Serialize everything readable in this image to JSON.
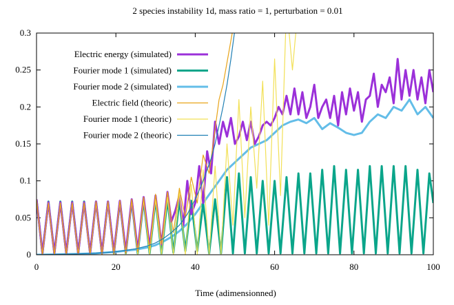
{
  "chart_data": {
    "type": "line",
    "title": "2 species instability 1d, mass ratio = 1, perturbation = 0.01",
    "xlabel": "Time (adimensionned)",
    "ylabel": "",
    "xlim": [
      0,
      100
    ],
    "ylim": [
      0,
      0.3
    ],
    "xticks": [
      "0",
      "20",
      "40",
      "60",
      "80",
      "100"
    ],
    "yticks": [
      "0",
      "0.05",
      "0.1",
      "0.15",
      "0.2",
      "0.25",
      "0.3"
    ],
    "grid": false,
    "legend_position": "top-left",
    "series": [
      {
        "name": "Electric energy (simulated)",
        "color": "#9b30d9",
        "style": "thick",
        "x": [
          0,
          1.5,
          3,
          4.5,
          6,
          7.5,
          9,
          10.5,
          12,
          13.5,
          15,
          16.5,
          18,
          19.5,
          21,
          22.5,
          24,
          25.5,
          27,
          28.5,
          30,
          31.5,
          33,
          34,
          35,
          36,
          37,
          38,
          39,
          40,
          41,
          42,
          43,
          44,
          45,
          46,
          47,
          48,
          49,
          50,
          51,
          52,
          53,
          54,
          55,
          56,
          57,
          58,
          59,
          60,
          61,
          62,
          63,
          64,
          65,
          66,
          67,
          68,
          69,
          70,
          71,
          72,
          73,
          74,
          75,
          76,
          77,
          78,
          79,
          80,
          81,
          82,
          83,
          84,
          85,
          86,
          87,
          88,
          89,
          90,
          91,
          92,
          93,
          94,
          95,
          96,
          97,
          98,
          99,
          100
        ],
        "y": [
          0.075,
          0.002,
          0.071,
          0.002,
          0.071,
          0.002,
          0.071,
          0.002,
          0.071,
          0.002,
          0.072,
          0.002,
          0.072,
          0.003,
          0.073,
          0.004,
          0.075,
          0.006,
          0.078,
          0.01,
          0.08,
          0.014,
          0.085,
          0.045,
          0.06,
          0.08,
          0.04,
          0.1,
          0.055,
          0.07,
          0.12,
          0.07,
          0.14,
          0.11,
          0.18,
          0.15,
          0.18,
          0.16,
          0.185,
          0.15,
          0.16,
          0.18,
          0.155,
          0.18,
          0.15,
          0.16,
          0.175,
          0.18,
          0.175,
          0.185,
          0.2,
          0.19,
          0.215,
          0.19,
          0.225,
          0.19,
          0.22,
          0.185,
          0.2,
          0.23,
          0.185,
          0.2,
          0.21,
          0.185,
          0.215,
          0.175,
          0.22,
          0.19,
          0.225,
          0.195,
          0.22,
          0.18,
          0.21,
          0.215,
          0.245,
          0.2,
          0.23,
          0.22,
          0.24,
          0.205,
          0.265,
          0.21,
          0.25,
          0.215,
          0.25,
          0.21,
          0.24,
          0.205,
          0.25,
          0.22
        ]
      },
      {
        "name": "Fourier mode 1 (simulated)",
        "color": "#0aa58a",
        "style": "thick",
        "x": [
          0,
          1.5,
          3,
          4.5,
          6,
          7.5,
          9,
          10.5,
          12,
          13.5,
          15,
          16.5,
          18,
          19.5,
          21,
          22.5,
          24,
          25.5,
          27,
          28.5,
          30,
          31.5,
          33,
          34.5,
          36,
          37.5,
          39,
          40.5,
          42,
          43.5,
          45,
          46.5,
          48,
          49.5,
          51,
          52.5,
          54,
          55.5,
          57,
          58.5,
          60,
          61.5,
          63,
          64.5,
          66,
          67.5,
          69,
          70.5,
          72,
          73.5,
          75,
          76.5,
          78,
          79.5,
          81,
          82.5,
          84,
          85.5,
          87,
          88.5,
          90,
          91.5,
          93,
          94.5,
          96,
          97.5,
          99,
          100
        ],
        "y": [
          0.075,
          0.002,
          0.072,
          0.002,
          0.072,
          0.002,
          0.072,
          0.002,
          0.072,
          0.002,
          0.072,
          0.002,
          0.072,
          0.002,
          0.072,
          0.002,
          0.073,
          0.002,
          0.074,
          0.002,
          0.075,
          0.002,
          0.075,
          0.003,
          0.074,
          0.005,
          0.073,
          0.005,
          0.07,
          0.002,
          0.075,
          0.002,
          0.105,
          0.002,
          0.11,
          0.002,
          0.105,
          0.002,
          0.1,
          0.002,
          0.1,
          0.002,
          0.105,
          0.002,
          0.11,
          0.002,
          0.11,
          0.002,
          0.115,
          0.002,
          0.12,
          0.002,
          0.115,
          0.002,
          0.115,
          0.002,
          0.12,
          0.002,
          0.12,
          0.002,
          0.12,
          0.002,
          0.12,
          0.002,
          0.115,
          0.002,
          0.11,
          0.07
        ]
      },
      {
        "name": "Fourier mode 2 (simulated)",
        "color": "#63bde8",
        "style": "thick",
        "x": [
          0,
          5,
          10,
          15,
          20,
          25,
          28,
          30,
          32,
          34,
          36,
          38,
          40,
          42,
          44,
          46,
          48,
          50,
          52,
          54,
          56,
          58,
          60,
          62,
          64,
          66,
          68,
          70,
          72,
          74,
          76,
          78,
          80,
          82,
          84,
          86,
          88,
          90,
          92,
          94,
          96,
          98,
          100
        ],
        "y": [
          0.0,
          0.0005,
          0.001,
          0.002,
          0.004,
          0.007,
          0.01,
          0.013,
          0.018,
          0.024,
          0.032,
          0.042,
          0.055,
          0.07,
          0.085,
          0.1,
          0.115,
          0.125,
          0.135,
          0.145,
          0.15,
          0.155,
          0.165,
          0.175,
          0.18,
          0.183,
          0.178,
          0.185,
          0.17,
          0.178,
          0.172,
          0.165,
          0.162,
          0.165,
          0.18,
          0.19,
          0.185,
          0.2,
          0.195,
          0.21,
          0.19,
          0.2,
          0.185
        ]
      },
      {
        "name": "Electric field (theoric)",
        "color": "#e8a317",
        "style": "thin",
        "x": [
          0,
          1.5,
          3,
          4.5,
          6,
          7.5,
          9,
          10.5,
          12,
          13.5,
          15,
          16.5,
          18,
          19.5,
          21,
          22.5,
          24,
          25.5,
          27,
          28.5,
          30,
          31.5,
          33,
          34.5,
          36,
          37.5,
          39,
          40.5,
          42,
          43.5,
          45,
          46,
          47,
          48,
          49,
          50
        ],
        "y": [
          0.075,
          0.0,
          0.07,
          0.0,
          0.07,
          0.0,
          0.07,
          0.0,
          0.07,
          0.0,
          0.072,
          0.0,
          0.072,
          0.001,
          0.073,
          0.002,
          0.075,
          0.004,
          0.078,
          0.008,
          0.082,
          0.015,
          0.085,
          0.03,
          0.09,
          0.05,
          0.105,
          0.07,
          0.135,
          0.11,
          0.17,
          0.21,
          0.23,
          0.26,
          0.29,
          0.32
        ]
      },
      {
        "name": "Fourier mode 1 (theoric)",
        "color": "#f2e055",
        "style": "thin",
        "x": [
          0,
          1.5,
          3,
          4.5,
          6,
          7.5,
          9,
          10.5,
          12,
          13.5,
          15,
          16.5,
          18,
          19.5,
          21,
          22.5,
          24,
          25.5,
          27,
          28.5,
          30,
          31.5,
          33,
          34.5,
          36,
          37.5,
          39,
          40.5,
          42,
          43.5,
          45,
          46.5,
          48,
          49.5,
          51,
          52.5,
          54,
          55.5,
          57,
          58.5,
          60,
          61.5,
          63,
          64.5,
          66
        ],
        "y": [
          0.075,
          0.0,
          0.07,
          0.0,
          0.07,
          0.0,
          0.07,
          0.0,
          0.07,
          0.0,
          0.07,
          0.0,
          0.07,
          0.0,
          0.072,
          0.0,
          0.073,
          0.0,
          0.074,
          0.0,
          0.075,
          0.0,
          0.078,
          0.0,
          0.085,
          0.0,
          0.095,
          0.0,
          0.115,
          0.0,
          0.12,
          0.0,
          0.15,
          0.04,
          0.21,
          0.05,
          0.2,
          0.09,
          0.235,
          0.04,
          0.265,
          0.08,
          0.34,
          0.25,
          0.34
        ]
      },
      {
        "name": "Fourier mode 2 (theoric)",
        "color": "#1f7fb4",
        "style": "thin",
        "x": [
          0,
          5,
          10,
          15,
          20,
          25,
          28,
          30,
          32,
          34,
          36,
          38,
          40,
          42,
          44,
          45,
          46,
          47,
          48,
          49,
          50
        ],
        "y": [
          0.0,
          0.0005,
          0.001,
          0.002,
          0.004,
          0.008,
          0.012,
          0.016,
          0.022,
          0.03,
          0.04,
          0.055,
          0.075,
          0.1,
          0.13,
          0.15,
          0.175,
          0.2,
          0.23,
          0.265,
          0.305
        ]
      }
    ]
  }
}
